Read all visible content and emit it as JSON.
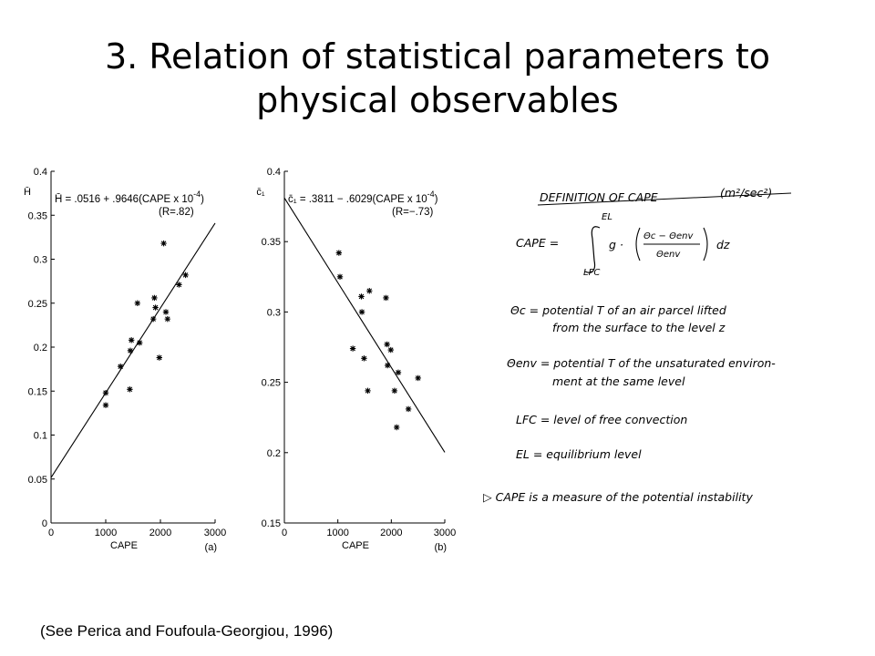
{
  "slide": {
    "title_line1": "3. Relation of statistical parameters to",
    "title_line2": "physical observables",
    "citation": "(See Perica and Foufoula-Georgiou, 1996)"
  },
  "chart_data": [
    {
      "type": "scatter",
      "panel_label": "(a)",
      "xlabel": "CAPE",
      "ylabel": "H̄",
      "xlim": [
        0,
        3000
      ],
      "ylim": [
        0,
        0.4
      ],
      "xticks": [
        0,
        1000,
        2000,
        3000
      ],
      "yticks": [
        0,
        0.05,
        0.1,
        0.15,
        0.2,
        0.25,
        0.3,
        0.35,
        0.4
      ],
      "xtick_labels": [
        "0",
        "1000",
        "2000",
        "3000"
      ],
      "ytick_labels": [
        "0",
        "0.05",
        "0.1",
        "0.15",
        "0.2",
        "0.25",
        "0.3",
        "0.35",
        "0.4"
      ],
      "equation": "H̄ = .0516 + .9646(CAPE x 10",
      "equation_exp": "-4",
      "equation_close": ")",
      "r_label": "(R=.82)",
      "fit": {
        "intercept": 0.0516,
        "slope": 9.646e-05
      },
      "points": [
        {
          "x": 1000,
          "y": 0.148
        },
        {
          "x": 1000,
          "y": 0.134
        },
        {
          "x": 1270,
          "y": 0.178
        },
        {
          "x": 1440,
          "y": 0.152
        },
        {
          "x": 1450,
          "y": 0.196
        },
        {
          "x": 1470,
          "y": 0.208
        },
        {
          "x": 1580,
          "y": 0.25
        },
        {
          "x": 1620,
          "y": 0.205
        },
        {
          "x": 1870,
          "y": 0.232
        },
        {
          "x": 1890,
          "y": 0.256
        },
        {
          "x": 1910,
          "y": 0.245
        },
        {
          "x": 1980,
          "y": 0.188
        },
        {
          "x": 2060,
          "y": 0.318
        },
        {
          "x": 2100,
          "y": 0.24
        },
        {
          "x": 2130,
          "y": 0.232
        },
        {
          "x": 2340,
          "y": 0.271
        },
        {
          "x": 2460,
          "y": 0.282
        }
      ]
    },
    {
      "type": "scatter",
      "panel_label": "(b)",
      "xlabel": "CAPE",
      "ylabel": "c̄₁",
      "xlim": [
        0,
        3000
      ],
      "ylim": [
        0.15,
        0.4
      ],
      "xticks": [
        0,
        1000,
        2000,
        3000
      ],
      "yticks": [
        0.15,
        0.2,
        0.25,
        0.3,
        0.35,
        0.4
      ],
      "xtick_labels": [
        "0",
        "1000",
        "2000",
        "3000"
      ],
      "ytick_labels": [
        "0.15",
        "0.2",
        "0.25",
        "0.3",
        "0.35",
        "0.4"
      ],
      "equation": "c̄₁ = .3811 − .6029(CAPE x 10",
      "equation_exp": "-4",
      "equation_close": ")",
      "r_label": "(R=−.73)",
      "fit": {
        "intercept": 0.3811,
        "slope": -6.029e-05
      },
      "points": [
        {
          "x": 1020,
          "y": 0.342
        },
        {
          "x": 1040,
          "y": 0.325
        },
        {
          "x": 1280,
          "y": 0.274
        },
        {
          "x": 1440,
          "y": 0.311
        },
        {
          "x": 1450,
          "y": 0.3
        },
        {
          "x": 1490,
          "y": 0.267
        },
        {
          "x": 1560,
          "y": 0.244
        },
        {
          "x": 1590,
          "y": 0.315
        },
        {
          "x": 1900,
          "y": 0.31
        },
        {
          "x": 1920,
          "y": 0.277
        },
        {
          "x": 1930,
          "y": 0.262
        },
        {
          "x": 1990,
          "y": 0.273
        },
        {
          "x": 2060,
          "y": 0.244
        },
        {
          "x": 2130,
          "y": 0.257
        },
        {
          "x": 2100,
          "y": 0.218
        },
        {
          "x": 2320,
          "y": 0.231
        },
        {
          "x": 2500,
          "y": 0.253
        }
      ]
    }
  ],
  "definition": {
    "heading": "DEFINITION OF CAPE",
    "units": "(m²/sec²)",
    "lhs": "CAPE =",
    "upper_limit": "EL",
    "lower_limit": "LFC",
    "integrand_g": "g ·",
    "numerator": "Θc − Θenv",
    "denominator": "Θenv",
    "dz": "dz",
    "theta_c_line1": "Θc = potential T of an air parcel lifted",
    "theta_c_line2": "from the surface to the level z",
    "theta_env_line1": "Θenv = potential T of the unsaturated environ-",
    "theta_env_line2": "ment at the same level",
    "lfc_def": "LFC = level of free convection",
    "el_def": "EL = equilibrium level",
    "conclusion": "▷ CAPE is a measure of the potential instability"
  }
}
